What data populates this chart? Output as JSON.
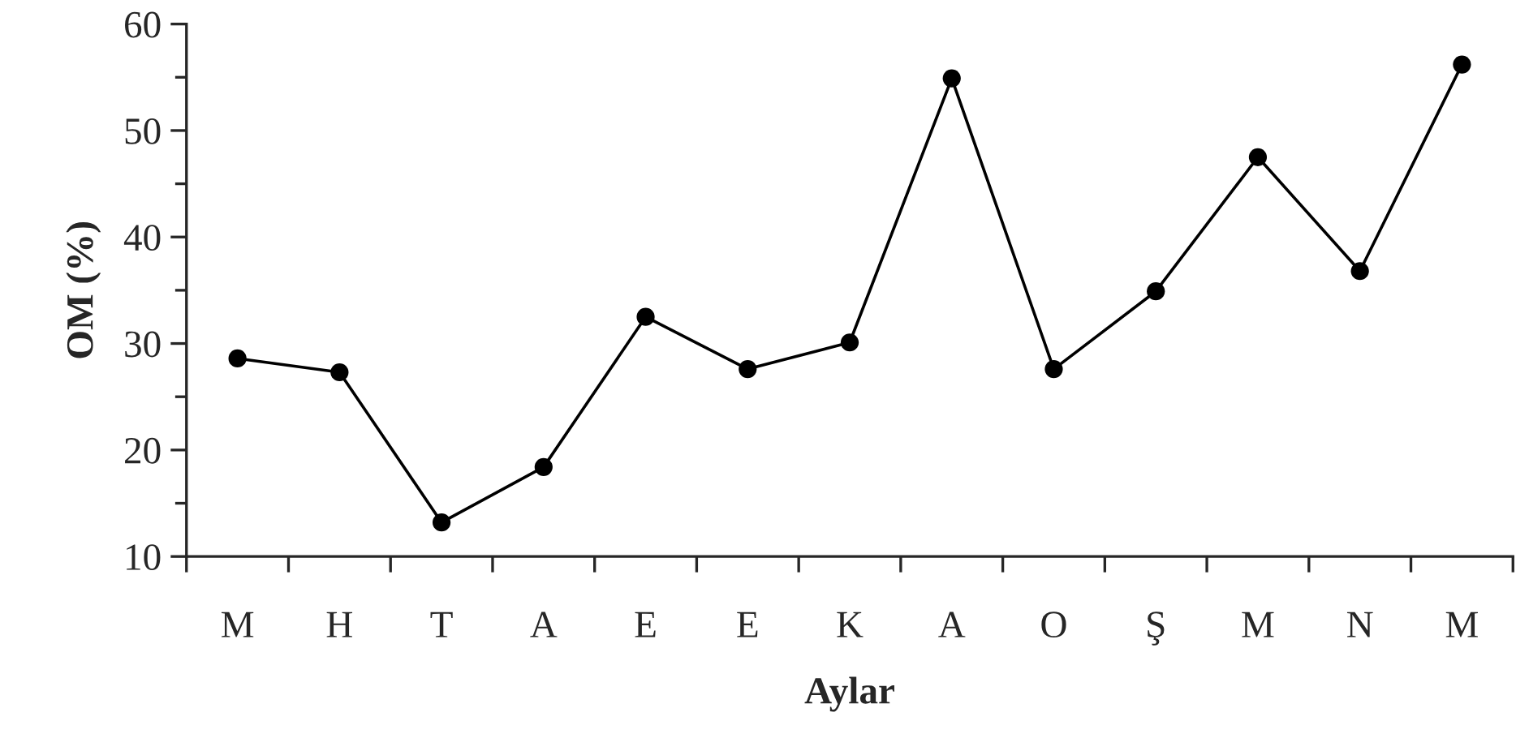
{
  "chart_data": {
    "type": "line",
    "xlabel": "Aylar",
    "ylabel": "OM (%)",
    "categories": [
      "M",
      "H",
      "T",
      "A",
      "E",
      "E",
      "K",
      "A",
      "O",
      "Ş",
      "M",
      "N",
      "M"
    ],
    "series": [
      {
        "color": "#000000",
        "values": [
          28.6,
          27.3,
          13.2,
          18.4,
          32.5,
          27.6,
          30.1,
          54.9,
          27.6,
          34.9,
          47.5,
          36.8,
          56.2
        ]
      }
    ],
    "ylim": [
      10,
      60
    ],
    "yticks": [
      10,
      20,
      30,
      40,
      50,
      60
    ],
    "grid": false,
    "legend": false,
    "marker": "circle",
    "line_style": "solid"
  }
}
